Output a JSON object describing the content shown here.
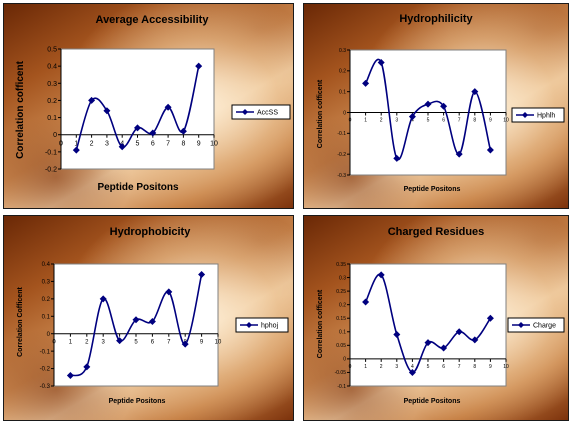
{
  "chart_data": [
    {
      "type": "line",
      "title": "Average Accessibility",
      "xlabel": "Peptide Positons",
      "ylabel": "Correlation cofficent",
      "x": [
        1,
        2,
        3,
        4,
        5,
        6,
        7,
        8,
        9
      ],
      "series": [
        {
          "name": "AccSS",
          "values": [
            -0.09,
            0.2,
            0.14,
            -0.07,
            0.04,
            0.01,
            0.16,
            0.02,
            0.4
          ]
        }
      ],
      "xlim": [
        0,
        10
      ],
      "ylim": [
        -0.2,
        0.5
      ],
      "xticks": [
        "0",
        "1",
        "2",
        "3",
        "4",
        "5",
        "6",
        "7",
        "8",
        "9",
        "10"
      ],
      "yticks": [
        "-0.2",
        "-0.1",
        "0",
        "0.1",
        "0.2",
        "0.3",
        "0.4",
        "0.5"
      ],
      "grid": false,
      "legend": "right"
    },
    {
      "type": "line",
      "title": "Hydrophilicity",
      "xlabel": "Peptide Positons",
      "ylabel": "Correlation cofficent",
      "x": [
        1,
        2,
        3,
        4,
        5,
        6,
        7,
        8,
        9
      ],
      "series": [
        {
          "name": "Hphlh",
          "values": [
            0.14,
            0.24,
            -0.22,
            -0.02,
            0.04,
            0.03,
            -0.2,
            0.1,
            -0.18
          ]
        }
      ],
      "xlim": [
        0,
        10
      ],
      "ylim": [
        -0.3,
        0.3
      ],
      "xticks": [
        "0",
        "1",
        "2",
        "3",
        "4",
        "5",
        "6",
        "7",
        "8",
        "9",
        "10"
      ],
      "yticks": [
        "-0.3",
        "-0.2",
        "-0.1",
        "0",
        "0.1",
        "0.2",
        "0.3"
      ],
      "grid": false,
      "legend": "right"
    },
    {
      "type": "line",
      "title": "Hydrophobicity",
      "xlabel": "Peptide Positons",
      "ylabel": "Correlation Cofficent",
      "x": [
        1,
        2,
        3,
        4,
        5,
        6,
        7,
        8,
        9
      ],
      "series": [
        {
          "name": "hphoj",
          "values": [
            -0.24,
            -0.19,
            0.2,
            -0.04,
            0.08,
            0.07,
            0.24,
            -0.06,
            0.34
          ]
        }
      ],
      "xlim": [
        0,
        10
      ],
      "ylim": [
        -0.3,
        0.4
      ],
      "xticks": [
        "0",
        "1",
        "2",
        "3",
        "4",
        "5",
        "6",
        "7",
        "8",
        "9",
        "10"
      ],
      "yticks": [
        "-0.3",
        "-0.2",
        "-0.1",
        "0",
        "0.1",
        "0.2",
        "0.3",
        "0.4"
      ],
      "grid": false,
      "legend": "right"
    },
    {
      "type": "line",
      "title": "Charged Residues",
      "xlabel": "Peptide Positons",
      "ylabel": "Correlation cofficent",
      "x": [
        1,
        2,
        3,
        4,
        5,
        6,
        7,
        8,
        9
      ],
      "series": [
        {
          "name": "Charge",
          "values": [
            0.21,
            0.31,
            0.09,
            -0.05,
            0.06,
            0.04,
            0.1,
            0.07,
            0.15
          ]
        }
      ],
      "xlim": [
        0,
        10
      ],
      "ylim": [
        -0.1,
        0.35
      ],
      "xticks": [
        "0",
        "1",
        "2",
        "3",
        "4",
        "5",
        "6",
        "7",
        "8",
        "9",
        "10"
      ],
      "yticks": [
        "-0.1",
        "-0.05",
        "0",
        "0.05",
        "0.1",
        "0.15",
        "0.2",
        "0.25",
        "0.3",
        "0.35"
      ],
      "grid": false,
      "legend": "right"
    }
  ],
  "colors": {
    "line": "#00007f",
    "marker": "#00007f",
    "plot_area": "#ffffff",
    "panel_border": "#1a1a1a"
  }
}
